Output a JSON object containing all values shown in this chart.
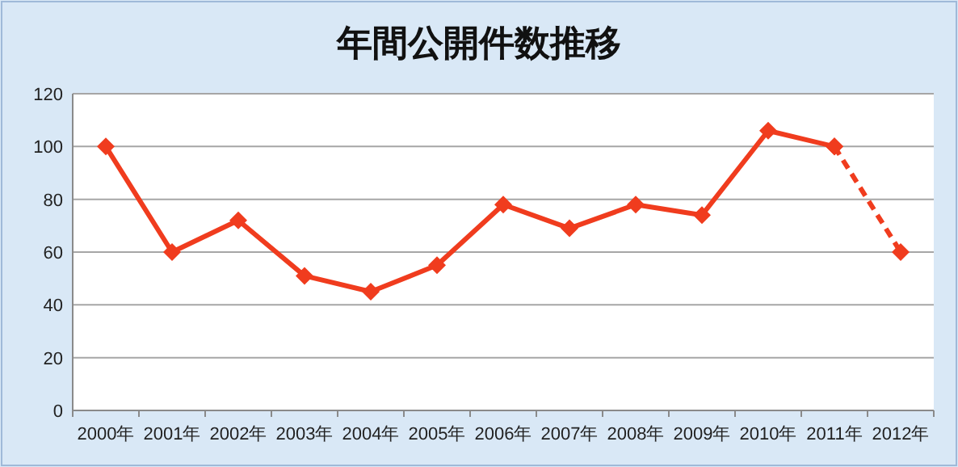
{
  "chart_data": {
    "type": "line",
    "title": "年間公開件数推移",
    "categories": [
      "2000年",
      "2001年",
      "2002年",
      "2003年",
      "2004年",
      "2005年",
      "2006年",
      "2007年",
      "2008年",
      "2009年",
      "2010年",
      "2011年",
      "2012年"
    ],
    "series": [
      {
        "color": "#f03c1e",
        "line_style": "solid",
        "values": [
          100,
          60,
          72,
          51,
          45,
          55,
          78,
          69,
          78,
          74,
          106,
          100,
          null
        ]
      },
      {
        "color": "#f03c1e",
        "line_style": "dashed",
        "values": [
          null,
          null,
          null,
          null,
          null,
          null,
          null,
          null,
          null,
          null,
          null,
          100,
          60
        ]
      }
    ],
    "ylim": [
      0,
      120
    ],
    "yticks": [
      0,
      20,
      40,
      60,
      80,
      100,
      120
    ],
    "grid": "y",
    "marker": "diamond"
  }
}
